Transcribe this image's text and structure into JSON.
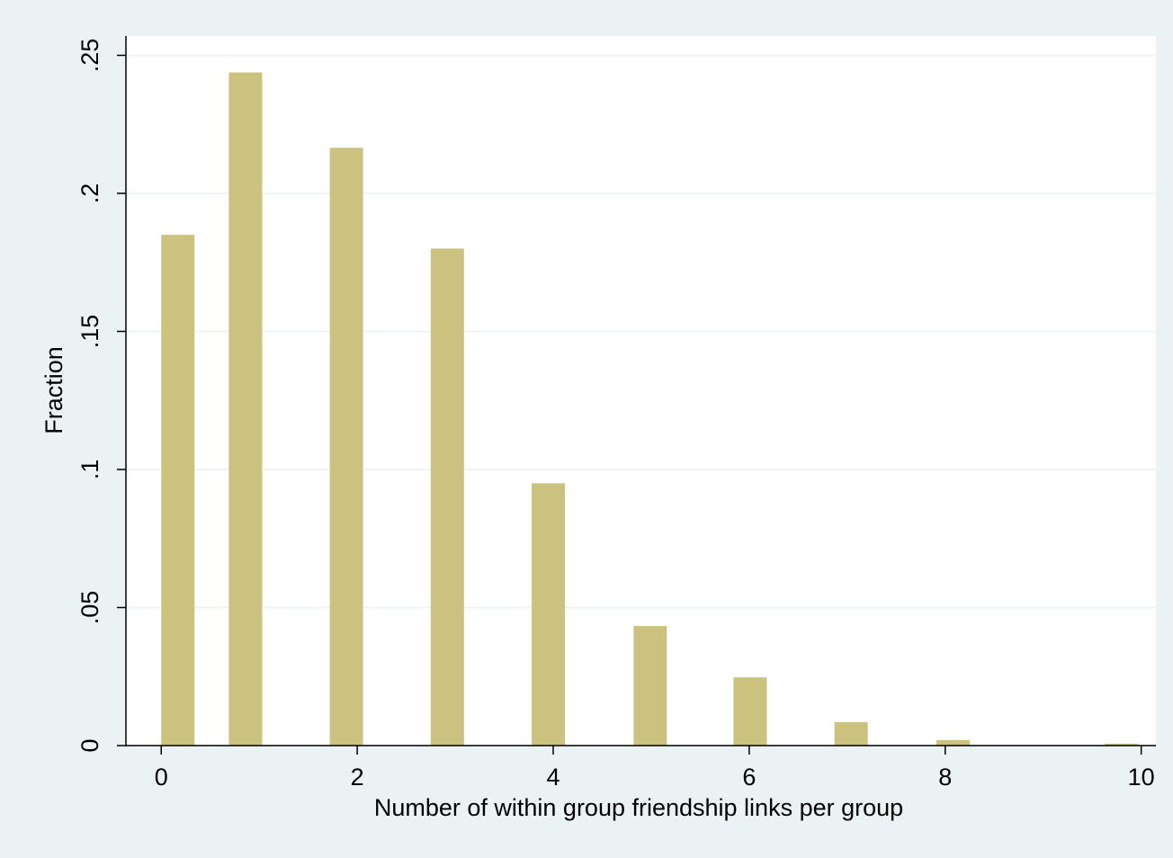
{
  "chart_data": {
    "type": "bar",
    "x_label": "Number of within group friendship links per group",
    "y_label": "Fraction",
    "x": [
      0.17,
      0.86,
      1.89,
      2.92,
      3.95,
      4.99,
      6.01,
      7.04,
      8.08,
      9.8
    ],
    "values": [
      0.185,
      0.2438,
      0.2165,
      0.18,
      0.095,
      0.0433,
      0.0247,
      0.0085,
      0.002,
      0.0007
    ],
    "color": "#ccc27f",
    "xlim": [
      -0.36,
      10.15
    ],
    "xticks": [
      0,
      2,
      4,
      6,
      8,
      10
    ],
    "ylim": [
      0,
      0.257
    ],
    "yticks": [
      0,
      {
        "value": 0.05,
        "label": ".05"
      },
      {
        "value": 0.1,
        "label": ".1"
      },
      {
        "value": 0.15,
        "label": ".15"
      },
      {
        "value": 0.2,
        "label": ".2"
      },
      {
        "value": 0.25,
        "label": ".25"
      }
    ],
    "grid": true
  }
}
